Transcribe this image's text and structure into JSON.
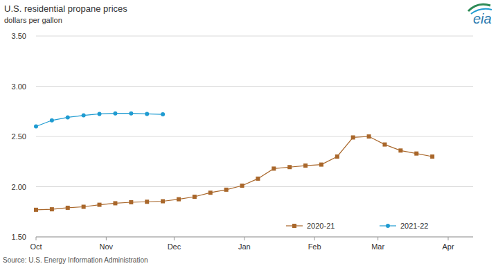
{
  "chart_data": {
    "type": "line",
    "title": "U.S. residential propane prices",
    "subtitle": "dollars per gallon",
    "source": "Source: U.S. Energy Information Administration",
    "logo": "eia",
    "x": [
      0,
      7,
      14,
      21,
      28,
      35,
      42,
      49,
      56,
      63,
      70,
      77,
      84,
      91,
      98,
      105,
      112,
      119,
      126,
      133,
      140,
      147,
      154,
      161,
      168,
      175
    ],
    "xlim": [
      0,
      193
    ],
    "xticks": [
      {
        "value": 0,
        "label": "Oct"
      },
      {
        "value": 31,
        "label": "Nov"
      },
      {
        "value": 61,
        "label": "Dec"
      },
      {
        "value": 92,
        "label": "Jan"
      },
      {
        "value": 123,
        "label": "Feb"
      },
      {
        "value": 151,
        "label": "Mar"
      },
      {
        "value": 182,
        "label": "Apr"
      }
    ],
    "ylim": [
      1.5,
      3.5
    ],
    "yticks": [
      {
        "value": 1.5,
        "label": "1.50"
      },
      {
        "value": 2.0,
        "label": "2.00"
      },
      {
        "value": 2.5,
        "label": "2.50"
      },
      {
        "value": 3.0,
        "label": "3.00"
      },
      {
        "value": 3.5,
        "label": "3.50"
      }
    ],
    "grid": true,
    "legend": "lower right",
    "series": [
      {
        "name": "2020-21",
        "color": "#a9672b",
        "marker": "square",
        "values": [
          1.77,
          1.775,
          1.79,
          1.8,
          1.82,
          1.835,
          1.845,
          1.85,
          1.855,
          1.875,
          1.9,
          1.94,
          1.97,
          2.01,
          2.08,
          2.18,
          2.195,
          2.21,
          2.22,
          2.3,
          2.49,
          2.5,
          2.42,
          2.36,
          2.33,
          2.3
        ]
      },
      {
        "name": "2021-22",
        "color": "#1f9bd1",
        "marker": "circle",
        "values": [
          2.6,
          2.66,
          2.69,
          2.71,
          2.725,
          2.73,
          2.73,
          2.725,
          2.72,
          null,
          null,
          null,
          null,
          null,
          null,
          null,
          null,
          null,
          null,
          null,
          null,
          null,
          null,
          null,
          null,
          null
        ]
      }
    ]
  }
}
